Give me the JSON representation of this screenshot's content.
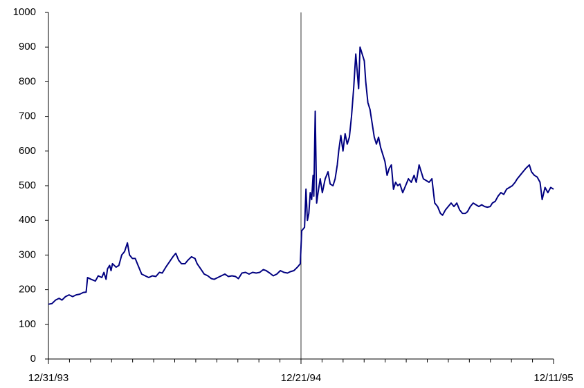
{
  "chart_data": {
    "type": "line",
    "x": [
      0,
      5,
      10,
      15,
      19,
      24,
      29,
      34,
      39,
      44,
      49,
      53,
      55,
      60,
      66,
      70,
      75,
      78,
      81,
      83,
      86,
      88,
      90,
      95,
      99,
      103,
      107,
      111,
      114,
      118,
      122,
      126,
      131,
      136,
      141,
      146,
      151,
      156,
      160,
      165,
      170,
      175,
      179,
      183,
      187,
      192,
      196,
      201,
      206,
      209,
      214,
      219,
      224,
      229,
      233,
      238,
      243,
      248,
      253,
      258,
      263,
      267,
      272,
      277,
      282,
      287,
      292,
      297,
      302,
      306,
      311,
      316,
      321,
      326,
      331,
      336,
      340,
      345,
      350,
      354,
      356,
      360,
      362,
      364,
      366,
      368,
      370,
      372,
      373,
      375,
      377,
      379,
      382,
      385,
      389,
      393,
      396,
      400,
      403,
      406,
      408,
      411,
      414,
      417,
      420,
      423,
      426,
      429,
      432,
      434,
      436,
      438,
      441,
      444,
      446,
      449,
      452,
      455,
      458,
      461,
      464,
      467,
      470,
      473,
      476,
      479,
      482,
      485,
      488,
      491,
      494,
      498,
      502,
      506,
      510,
      514,
      517,
      521,
      524,
      527,
      531,
      535,
      539,
      543,
      547,
      551,
      554,
      558,
      562,
      566,
      570,
      574,
      578,
      582,
      586,
      589,
      593,
      597,
      601,
      605,
      609,
      613,
      617,
      621,
      624,
      628,
      632,
      636,
      640,
      644,
      648,
      652,
      656,
      659,
      663,
      667,
      671,
      676,
      679,
      683,
      687,
      691,
      694,
      698,
      702,
      706,
      710
    ],
    "series": [
      {
        "color": "#000080",
        "values": [
          158,
          160,
          170,
          175,
          170,
          180,
          185,
          180,
          185,
          187,
          192,
          193,
          235,
          230,
          225,
          240,
          235,
          250,
          230,
          260,
          270,
          255,
          275,
          265,
          270,
          300,
          310,
          335,
          300,
          290,
          290,
          270,
          245,
          240,
          235,
          240,
          238,
          250,
          248,
          265,
          280,
          295,
          305,
          285,
          275,
          275,
          285,
          295,
          290,
          275,
          260,
          245,
          240,
          232,
          230,
          235,
          240,
          245,
          238,
          240,
          238,
          232,
          248,
          250,
          245,
          250,
          248,
          250,
          258,
          255,
          248,
          240,
          245,
          255,
          250,
          248,
          252,
          255,
          265,
          275,
          370,
          380,
          490,
          400,
          420,
          480,
          460,
          530,
          470,
          715,
          450,
          480,
          520,
          480,
          520,
          540,
          505,
          500,
          520,
          560,
          600,
          645,
          600,
          650,
          620,
          640,
          700,
          780,
          880,
          830,
          780,
          900,
          880,
          860,
          800,
          740,
          720,
          680,
          640,
          620,
          640,
          610,
          590,
          570,
          530,
          550,
          560,
          490,
          510,
          500,
          505,
          480,
          500,
          520,
          510,
          530,
          510,
          560,
          540,
          520,
          515,
          510,
          520,
          450,
          440,
          420,
          415,
          430,
          440,
          450,
          440,
          450,
          430,
          420,
          420,
          425,
          440,
          450,
          445,
          440,
          445,
          440,
          438,
          440,
          450,
          455,
          470,
          480,
          475,
          490,
          495,
          500,
          510,
          520,
          530,
          540,
          550,
          560,
          540,
          530,
          525,
          510,
          460,
          495,
          480,
          495,
          490
        ]
      }
    ],
    "xlim": [
      0,
      710
    ],
    "xticks": [
      {
        "value": 0,
        "label": "12/31/93"
      },
      {
        "value": 355,
        "label": "12/21/94"
      },
      {
        "value": 710,
        "label": "12/11/95"
      }
    ],
    "ylim": [
      0,
      1000
    ],
    "yticks": [
      0,
      100,
      200,
      300,
      400,
      500,
      600,
      700,
      800,
      900,
      1000
    ]
  }
}
